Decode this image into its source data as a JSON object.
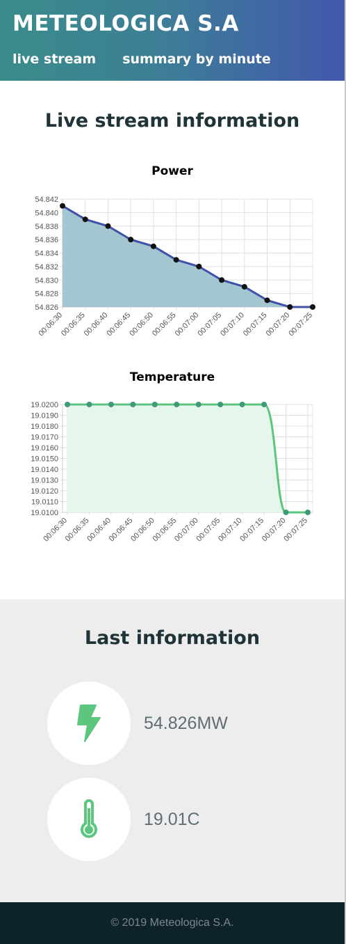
{
  "header": {
    "brand": "METEOLOGICA S.A",
    "nav": [
      "live stream",
      "summary by minute"
    ]
  },
  "live": {
    "title": "Live stream information"
  },
  "chart_data": [
    {
      "type": "area",
      "title": "Power",
      "x": [
        "00:06:30",
        "00:06:35",
        "00:06:40",
        "00:06:45",
        "00:06:50",
        "00:06:55",
        "00:07:00",
        "00:07:05",
        "00:07:10",
        "00:07:15",
        "00:07:20",
        "00:07:25"
      ],
      "series": [
        {
          "values": [
            54.841,
            54.839,
            54.838,
            54.836,
            54.835,
            54.833,
            54.832,
            54.83,
            54.829,
            54.827,
            54.826,
            54.826
          ]
        }
      ],
      "ylim": [
        54.826,
        54.842
      ],
      "yticks": [
        "54.842",
        "54.840",
        "54.838",
        "54.836",
        "54.834",
        "54.832",
        "54.830",
        "54.828",
        "54.826"
      ],
      "grid": true,
      "line_color": "#3f51a8",
      "fill_color": "#9fc3cf",
      "point_color": "#111111"
    },
    {
      "type": "area",
      "title": "Temperature",
      "x": [
        "00:06:30",
        "00:06:35",
        "00:06:40",
        "00:06:45",
        "00:06:50",
        "00:06:55",
        "00:07:00",
        "00:07:05",
        "00:07:10",
        "00:07:15",
        "00:07:20",
        "00:07:25"
      ],
      "series": [
        {
          "values": [
            19.02,
            19.02,
            19.02,
            19.02,
            19.02,
            19.02,
            19.02,
            19.02,
            19.02,
            19.02,
            19.01,
            19.01
          ]
        }
      ],
      "ylim": [
        19.01,
        19.02
      ],
      "yticks": [
        "19.0200",
        "19.0190",
        "19.0180",
        "19.0170",
        "19.0160",
        "19.0150",
        "19.0140",
        "19.0130",
        "19.0120",
        "19.0110",
        "19.0100"
      ],
      "grid": true,
      "line_color": "#5cc57e",
      "fill_color": "#e4f5eb",
      "point_color": "#3f9a7a"
    }
  ],
  "last": {
    "title": "Last information",
    "power_value": "54.826MW",
    "temp_value": "19.01C",
    "power_icon": "lightning-icon",
    "temp_icon": "thermometer-icon",
    "icon_color": "#5cc57e"
  },
  "footer": {
    "text": "© 2019 Meteologica S.A."
  }
}
